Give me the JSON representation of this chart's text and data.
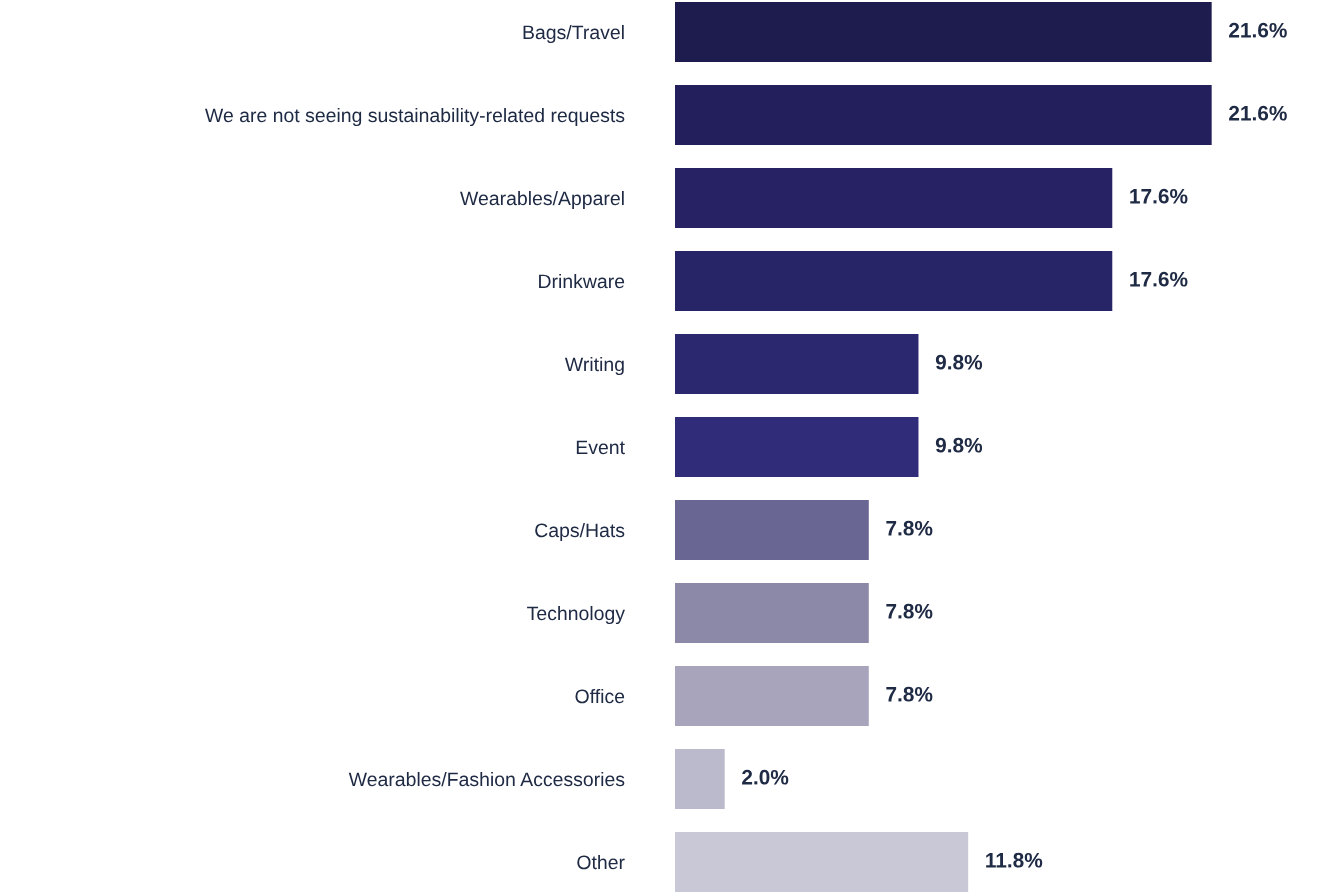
{
  "chart_data": {
    "type": "bar",
    "orientation": "horizontal",
    "categories": [
      "Bags/Travel",
      "We are not seeing sustainability-related requests",
      "Wearables/Apparel",
      "Drinkware",
      "Writing",
      "Event",
      "Caps/Hats",
      "Technology",
      "Office",
      "Wearables/Fashion Accessories",
      "Other"
    ],
    "values": [
      21.6,
      21.6,
      17.6,
      17.6,
      9.8,
      9.8,
      7.8,
      7.8,
      7.8,
      2.0,
      11.8
    ],
    "colors": [
      "#1e1b4f",
      "#221f5c",
      "#262263",
      "#282468",
      "#2c2870",
      "#302c7a",
      "#6a6694",
      "#8c89a8",
      "#a7a4bc",
      "#bbb9cc",
      "#c9c8d6"
    ],
    "value_labels": [
      "21.6%",
      "21.6%",
      "17.6%",
      "17.6%",
      "9.8%",
      "9.8%",
      "7.8%",
      "7.8%",
      "7.8%",
      "2.0%",
      "11.8%"
    ]
  }
}
